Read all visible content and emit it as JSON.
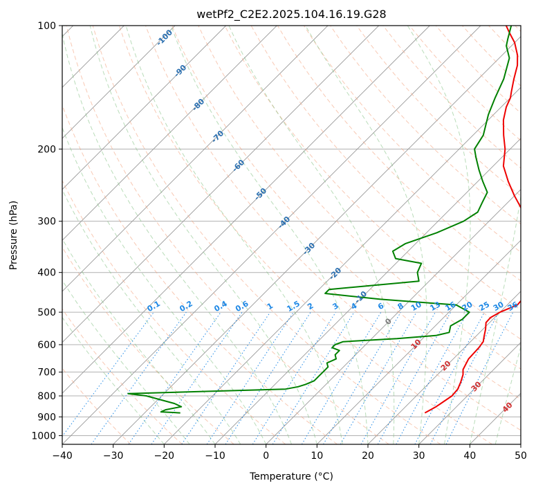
{
  "chart_data": {
    "type": "line",
    "title": "wetPf2_C2E2.2025.104.16.19.G28",
    "xlabel": "Temperature (°C)",
    "ylabel": "Pressure (hPa)",
    "xlim": [
      -40,
      50
    ],
    "ylim": [
      1050,
      100
    ],
    "y_scale": "log",
    "grid": true,
    "x_ticks": [
      -40,
      -30,
      -20,
      -10,
      0,
      10,
      20,
      30,
      40,
      50
    ],
    "y_ticks": [
      100,
      200,
      300,
      400,
      500,
      600,
      700,
      800,
      900,
      1000
    ],
    "skew": true,
    "colors": {
      "temperature": "#ee0000",
      "dewpoint": "#008000",
      "dry_adiabat": "#f4a582",
      "moist_adiabat": "#7fbf7f",
      "mixing_ratio": "#1e88e5",
      "isotherm": "#999999"
    },
    "series": [
      {
        "name": "",
        "color": "#ee0000",
        "points": [
          [
            25,
            880
          ],
          [
            26,
            850
          ],
          [
            27,
            800
          ],
          [
            26.8,
            770
          ],
          [
            26,
            740
          ],
          [
            25,
            710
          ],
          [
            24,
            690
          ],
          [
            23,
            650
          ],
          [
            22.8,
            610
          ],
          [
            22.5,
            590
          ],
          [
            21.5,
            570
          ],
          [
            20.5,
            550
          ],
          [
            19.3,
            530
          ],
          [
            19.2,
            515
          ],
          [
            20,
            500
          ],
          [
            22,
            480
          ],
          [
            21.8,
            460
          ],
          [
            20.5,
            440
          ],
          [
            19.5,
            420
          ],
          [
            18,
            400
          ],
          [
            17,
            380
          ],
          [
            15,
            350
          ],
          [
            11,
            320
          ],
          [
            8,
            300
          ],
          [
            4,
            280
          ],
          [
            0,
            260
          ],
          [
            -4,
            240
          ],
          [
            -8,
            220
          ],
          [
            -11,
            200
          ],
          [
            -14,
            185
          ],
          [
            -17,
            170
          ],
          [
            -19,
            158
          ],
          [
            -20,
            150
          ],
          [
            -21,
            145
          ],
          [
            -23,
            135
          ],
          [
            -25,
            125
          ],
          [
            -27,
            118
          ],
          [
            -30,
            110
          ],
          [
            -33,
            104
          ],
          [
            -35,
            100
          ]
        ]
      },
      {
        "name": "",
        "color": "#008000",
        "points": [
          [
            -23,
            880
          ],
          [
            -27,
            875
          ],
          [
            -26.5,
            865
          ],
          [
            -24,
            850
          ],
          [
            -26,
            835
          ],
          [
            -33,
            800
          ],
          [
            -37,
            790
          ],
          [
            -7,
            770
          ],
          [
            -5,
            760
          ],
          [
            -4,
            750
          ],
          [
            -3,
            735
          ],
          [
            -3,
            715
          ],
          [
            -3,
            700
          ],
          [
            -3,
            680
          ],
          [
            -4,
            665
          ],
          [
            -3,
            650
          ],
          [
            -4,
            635
          ],
          [
            -4,
            620
          ],
          [
            -6,
            610
          ],
          [
            -6,
            600
          ],
          [
            -5,
            590
          ],
          [
            5,
            580
          ],
          [
            12,
            570
          ],
          [
            14,
            560
          ],
          [
            13,
            540
          ],
          [
            14,
            520
          ],
          [
            14,
            500
          ],
          [
            10,
            480
          ],
          [
            -6,
            465
          ],
          [
            -18,
            450
          ],
          [
            -18,
            440
          ],
          [
            -2,
            420
          ],
          [
            -4,
            400
          ],
          [
            -5,
            380
          ],
          [
            -11,
            370
          ],
          [
            -13,
            355
          ],
          [
            -12,
            340
          ],
          [
            -8,
            320
          ],
          [
            -5,
            300
          ],
          [
            -4,
            285
          ],
          [
            -5,
            270
          ],
          [
            -6,
            255
          ],
          [
            -9,
            240
          ],
          [
            -12,
            225
          ],
          [
            -15,
            210
          ],
          [
            -17,
            200
          ],
          [
            -18,
            185
          ],
          [
            -21,
            165
          ],
          [
            -23,
            150
          ],
          [
            -25,
            135
          ],
          [
            -28,
            120
          ],
          [
            -31,
            112
          ],
          [
            -32,
            108
          ],
          [
            -34,
            100
          ]
        ]
      }
    ],
    "isotherm_labels": [
      "-100",
      "-90",
      "-80",
      "-70",
      "-60",
      "-50",
      "-40",
      "-30",
      "-20",
      "-10",
      "0",
      "10",
      "20",
      "30",
      "40"
    ],
    "mixing_ratio_labels": [
      "0.1",
      "0.2",
      "0.4",
      "0.6",
      "1",
      "1.5",
      "2",
      "3",
      "4",
      "6",
      "8",
      "10",
      "13",
      "16",
      "20",
      "25",
      "30",
      "36"
    ]
  }
}
